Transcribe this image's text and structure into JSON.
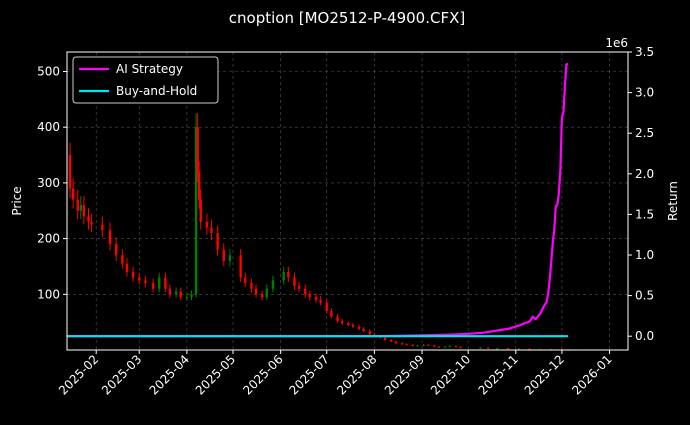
{
  "colors": {
    "background": "#000000",
    "text": "#ffffff",
    "grid": "#555555",
    "candle_up": "#008000",
    "candle_down": "#ff0000",
    "ai_strategy": "#ff00ff",
    "buy_and_hold": "#00e5ee"
  },
  "chart_data": {
    "type": "line",
    "title": "cnoption [MO2512-P-4900.CFX]",
    "ylabel_left": "Price",
    "ylabel_right": "Return",
    "right_offset_text": "1e6",
    "grid": true,
    "legend_position": "top-left",
    "xlim": [
      "2025-01-13",
      "2026-01-13"
    ],
    "ylim_left": [
      0,
      535
    ],
    "ylim_right": [
      -0.17,
      3.5
    ],
    "x_ticks": [
      "2025-02",
      "2025-03",
      "2025-04",
      "2025-05",
      "2025-06",
      "2025-07",
      "2025-08",
      "2025-09",
      "2025-10",
      "2025-11",
      "2025-12",
      "2026-01"
    ],
    "x_tick_dates": [
      "2025-02-01",
      "2025-03-01",
      "2025-04-01",
      "2025-05-01",
      "2025-06-01",
      "2025-07-01",
      "2025-08-01",
      "2025-09-01",
      "2025-10-01",
      "2025-11-01",
      "2025-12-01",
      "2026-01-01"
    ],
    "y_ticks_left": [
      100,
      200,
      300,
      400,
      500
    ],
    "y_ticks_right": [
      "0.0",
      "0.5",
      "1.0",
      "1.5",
      "2.0",
      "2.5",
      "3.0",
      "3.5"
    ],
    "y_tick_values_right": [
      0.0,
      0.5,
      1.0,
      1.5,
      2.0,
      2.5,
      3.0,
      3.5
    ],
    "price_series": [
      [
        "2025-01-13",
        350
      ],
      [
        "2025-01-15",
        290
      ],
      [
        "2025-01-17",
        270
      ],
      [
        "2025-01-20",
        250
      ],
      [
        "2025-01-22",
        260
      ],
      [
        "2025-01-24",
        240
      ],
      [
        "2025-01-27",
        230
      ],
      [
        "2025-01-29",
        225
      ],
      [
        "2025-02-05",
        215
      ],
      [
        "2025-02-10",
        190
      ],
      [
        "2025-02-14",
        170
      ],
      [
        "2025-02-18",
        155
      ],
      [
        "2025-02-21",
        140
      ],
      [
        "2025-02-25",
        130
      ],
      [
        "2025-03-01",
        125
      ],
      [
        "2025-03-05",
        120
      ],
      [
        "2025-03-10",
        110
      ],
      [
        "2025-03-14",
        130
      ],
      [
        "2025-03-18",
        110
      ],
      [
        "2025-03-21",
        100
      ],
      [
        "2025-03-25",
        105
      ],
      [
        "2025-03-28",
        95
      ],
      [
        "2025-04-01",
        95
      ],
      [
        "2025-04-04",
        100
      ],
      [
        "2025-04-07",
        400
      ],
      [
        "2025-04-08",
        320
      ],
      [
        "2025-04-09",
        270
      ],
      [
        "2025-04-10",
        230
      ],
      [
        "2025-04-14",
        220
      ],
      [
        "2025-04-17",
        210
      ],
      [
        "2025-04-21",
        180
      ],
      [
        "2025-04-25",
        160
      ],
      [
        "2025-04-29",
        170
      ],
      [
        "2025-05-06",
        130
      ],
      [
        "2025-05-09",
        120
      ],
      [
        "2025-05-13",
        110
      ],
      [
        "2025-05-16",
        100
      ],
      [
        "2025-05-20",
        95
      ],
      [
        "2025-05-23",
        110
      ],
      [
        "2025-05-27",
        125
      ],
      [
        "2025-06-03",
        140
      ],
      [
        "2025-06-06",
        130
      ],
      [
        "2025-06-10",
        115
      ],
      [
        "2025-06-13",
        110
      ],
      [
        "2025-06-17",
        100
      ],
      [
        "2025-06-20",
        95
      ],
      [
        "2025-06-24",
        90
      ],
      [
        "2025-06-27",
        85
      ],
      [
        "2025-07-01",
        70
      ],
      [
        "2025-07-04",
        60
      ],
      [
        "2025-07-08",
        52
      ],
      [
        "2025-07-11",
        48
      ],
      [
        "2025-07-15",
        45
      ],
      [
        "2025-07-18",
        42
      ],
      [
        "2025-07-22",
        38
      ],
      [
        "2025-07-25",
        34
      ],
      [
        "2025-07-29",
        28
      ],
      [
        "2025-08-01",
        25
      ],
      [
        "2025-08-05",
        22
      ],
      [
        "2025-08-08",
        18
      ],
      [
        "2025-08-12",
        15
      ],
      [
        "2025-08-15",
        12
      ],
      [
        "2025-08-19",
        10
      ],
      [
        "2025-08-22",
        9
      ],
      [
        "2025-08-26",
        8
      ],
      [
        "2025-08-29",
        8
      ],
      [
        "2025-09-02",
        9
      ],
      [
        "2025-09-05",
        8
      ],
      [
        "2025-09-09",
        6
      ],
      [
        "2025-09-12",
        5
      ],
      [
        "2025-09-16",
        6
      ],
      [
        "2025-09-19",
        7
      ],
      [
        "2025-09-23",
        5
      ],
      [
        "2025-09-26",
        4
      ],
      [
        "2025-10-09",
        4
      ],
      [
        "2025-10-14",
        3
      ],
      [
        "2025-10-20",
        3
      ],
      [
        "2025-10-27",
        2
      ],
      [
        "2025-11-03",
        2
      ],
      [
        "2025-11-10",
        1
      ],
      [
        "2025-11-17",
        1
      ],
      [
        "2025-11-24",
        1
      ],
      [
        "2025-12-01",
        0.5
      ],
      [
        "2025-12-05",
        0.5
      ]
    ],
    "series": [
      {
        "name": "AI Strategy",
        "points": [
          [
            "2025-01-13",
            0.0
          ],
          [
            "2025-08-01",
            0.0
          ],
          [
            "2025-09-01",
            0.01
          ],
          [
            "2025-09-20",
            0.02
          ],
          [
            "2025-10-01",
            0.03
          ],
          [
            "2025-10-10",
            0.04
          ],
          [
            "2025-10-20",
            0.07
          ],
          [
            "2025-10-27",
            0.09
          ],
          [
            "2025-11-03",
            0.13
          ],
          [
            "2025-11-07",
            0.16
          ],
          [
            "2025-11-10",
            0.18
          ],
          [
            "2025-11-12",
            0.24
          ],
          [
            "2025-11-14",
            0.21
          ],
          [
            "2025-11-17",
            0.28
          ],
          [
            "2025-11-19",
            0.36
          ],
          [
            "2025-11-21",
            0.42
          ],
          [
            "2025-11-22",
            0.52
          ],
          [
            "2025-11-23",
            0.68
          ],
          [
            "2025-11-24",
            0.9
          ],
          [
            "2025-11-25",
            1.15
          ],
          [
            "2025-11-26",
            1.3
          ],
          [
            "2025-11-27",
            1.6
          ],
          [
            "2025-11-28",
            1.62
          ],
          [
            "2025-11-29",
            1.75
          ],
          [
            "2025-11-30",
            2.05
          ],
          [
            "2025-12-01",
            2.7
          ],
          [
            "2025-12-02",
            2.75
          ],
          [
            "2025-12-03",
            3.1
          ],
          [
            "2025-12-04",
            3.35
          ],
          [
            "2025-12-05",
            3.35
          ]
        ]
      },
      {
        "name": "Buy-and-Hold",
        "points": [
          [
            "2025-01-13",
            0.0
          ],
          [
            "2025-12-05",
            0.0
          ]
        ]
      }
    ]
  }
}
